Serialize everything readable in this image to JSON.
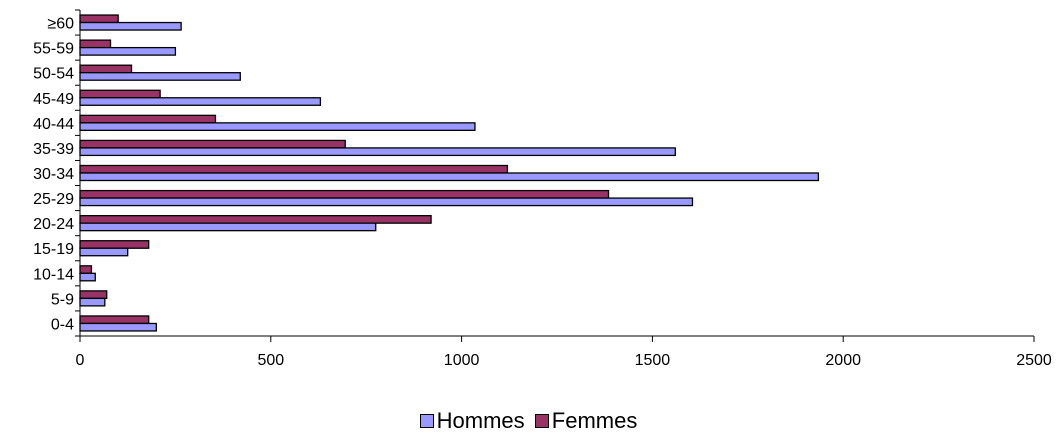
{
  "chart_data": {
    "type": "bar",
    "orientation": "horizontal",
    "categories": [
      "0-4",
      "5-9",
      "10-14",
      "15-19",
      "20-24",
      "25-29",
      "30-34",
      "35-39",
      "40-44",
      "45-49",
      "50-54",
      "55-59",
      "≥60"
    ],
    "series": [
      {
        "name": "Femmes",
        "color": "#993366",
        "values": [
          180,
          70,
          30,
          180,
          920,
          1385,
          1120,
          695,
          355,
          210,
          135,
          80,
          100
        ]
      },
      {
        "name": "Hommes",
        "color": "#9999ff",
        "values": [
          200,
          65,
          40,
          125,
          775,
          1605,
          1935,
          1560,
          1035,
          630,
          420,
          250,
          265
        ]
      }
    ],
    "xlim": [
      0,
      2500
    ],
    "xticks": [
      "0",
      "500",
      "1000",
      "1500",
      "2000",
      "2500"
    ],
    "grid": false,
    "legend": {
      "position": "bottom",
      "entries": [
        "Hommes",
        "Femmes"
      ]
    }
  }
}
